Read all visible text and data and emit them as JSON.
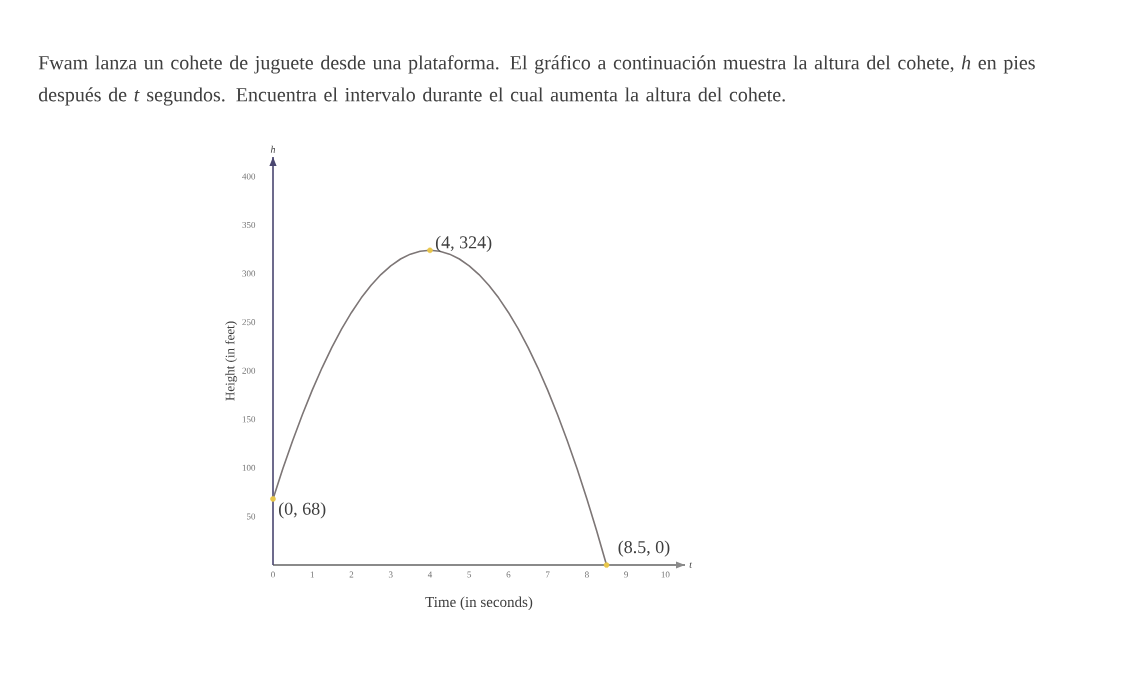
{
  "chart_data": {
    "type": "line",
    "title": "Fwam lanza un cohete de juguete desde una plataforma. El gráfico a continuación muestra la altura del cohete, *h* en pies después de *t* segundos. Encuentra el intervalo durante el cual aumenta la altura del cohete.",
    "xlabel": "Time (in seconds)",
    "ylabel": "Height (in feet)",
    "xlim": [
      0,
      10.5
    ],
    "ylim": [
      0,
      420
    ],
    "xticks": [
      0,
      1,
      2,
      3,
      4,
      5,
      6,
      7,
      8,
      9,
      10
    ],
    "yticks": [
      50,
      100,
      150,
      200,
      250,
      300,
      350,
      400
    ],
    "series": [
      {
        "color": "#7d7676",
        "x": [
          0,
          0.25,
          0.5,
          0.75,
          1,
          1.25,
          1.5,
          1.75,
          2,
          2.25,
          2.5,
          2.75,
          3,
          3.25,
          3.5,
          3.75,
          4,
          4.25,
          4.5,
          4.75,
          5,
          5.25,
          5.5,
          5.75,
          6,
          6.25,
          6.5,
          6.75,
          7,
          7.25,
          7.5,
          7.75,
          8,
          8.25,
          8.5
        ],
        "values": [
          68,
          99,
          128,
          155,
          180,
          203,
          224,
          243,
          260,
          275,
          288,
          299,
          308,
          315,
          320,
          323,
          324,
          323,
          320,
          315,
          308,
          299,
          288,
          275,
          260,
          243,
          224,
          203,
          180,
          155,
          128,
          99,
          68,
          35,
          0
        ]
      },
      {
        "type": "scatter",
        "color": "#e8c64a",
        "marker": "circle",
        "x": [
          0,
          4,
          8.5
        ],
        "values": [
          68,
          324,
          0
        ]
      }
    ],
    "annotations": [
      {
        "text": "(4, 324)",
        "x": 4,
        "y": 324
      },
      {
        "text": "(0, 68)",
        "x": 0,
        "y": 68
      },
      {
        "text": "(8.5, 0)",
        "x": 8.5,
        "y": 0
      },
      "h",
      "t"
    ]
  }
}
